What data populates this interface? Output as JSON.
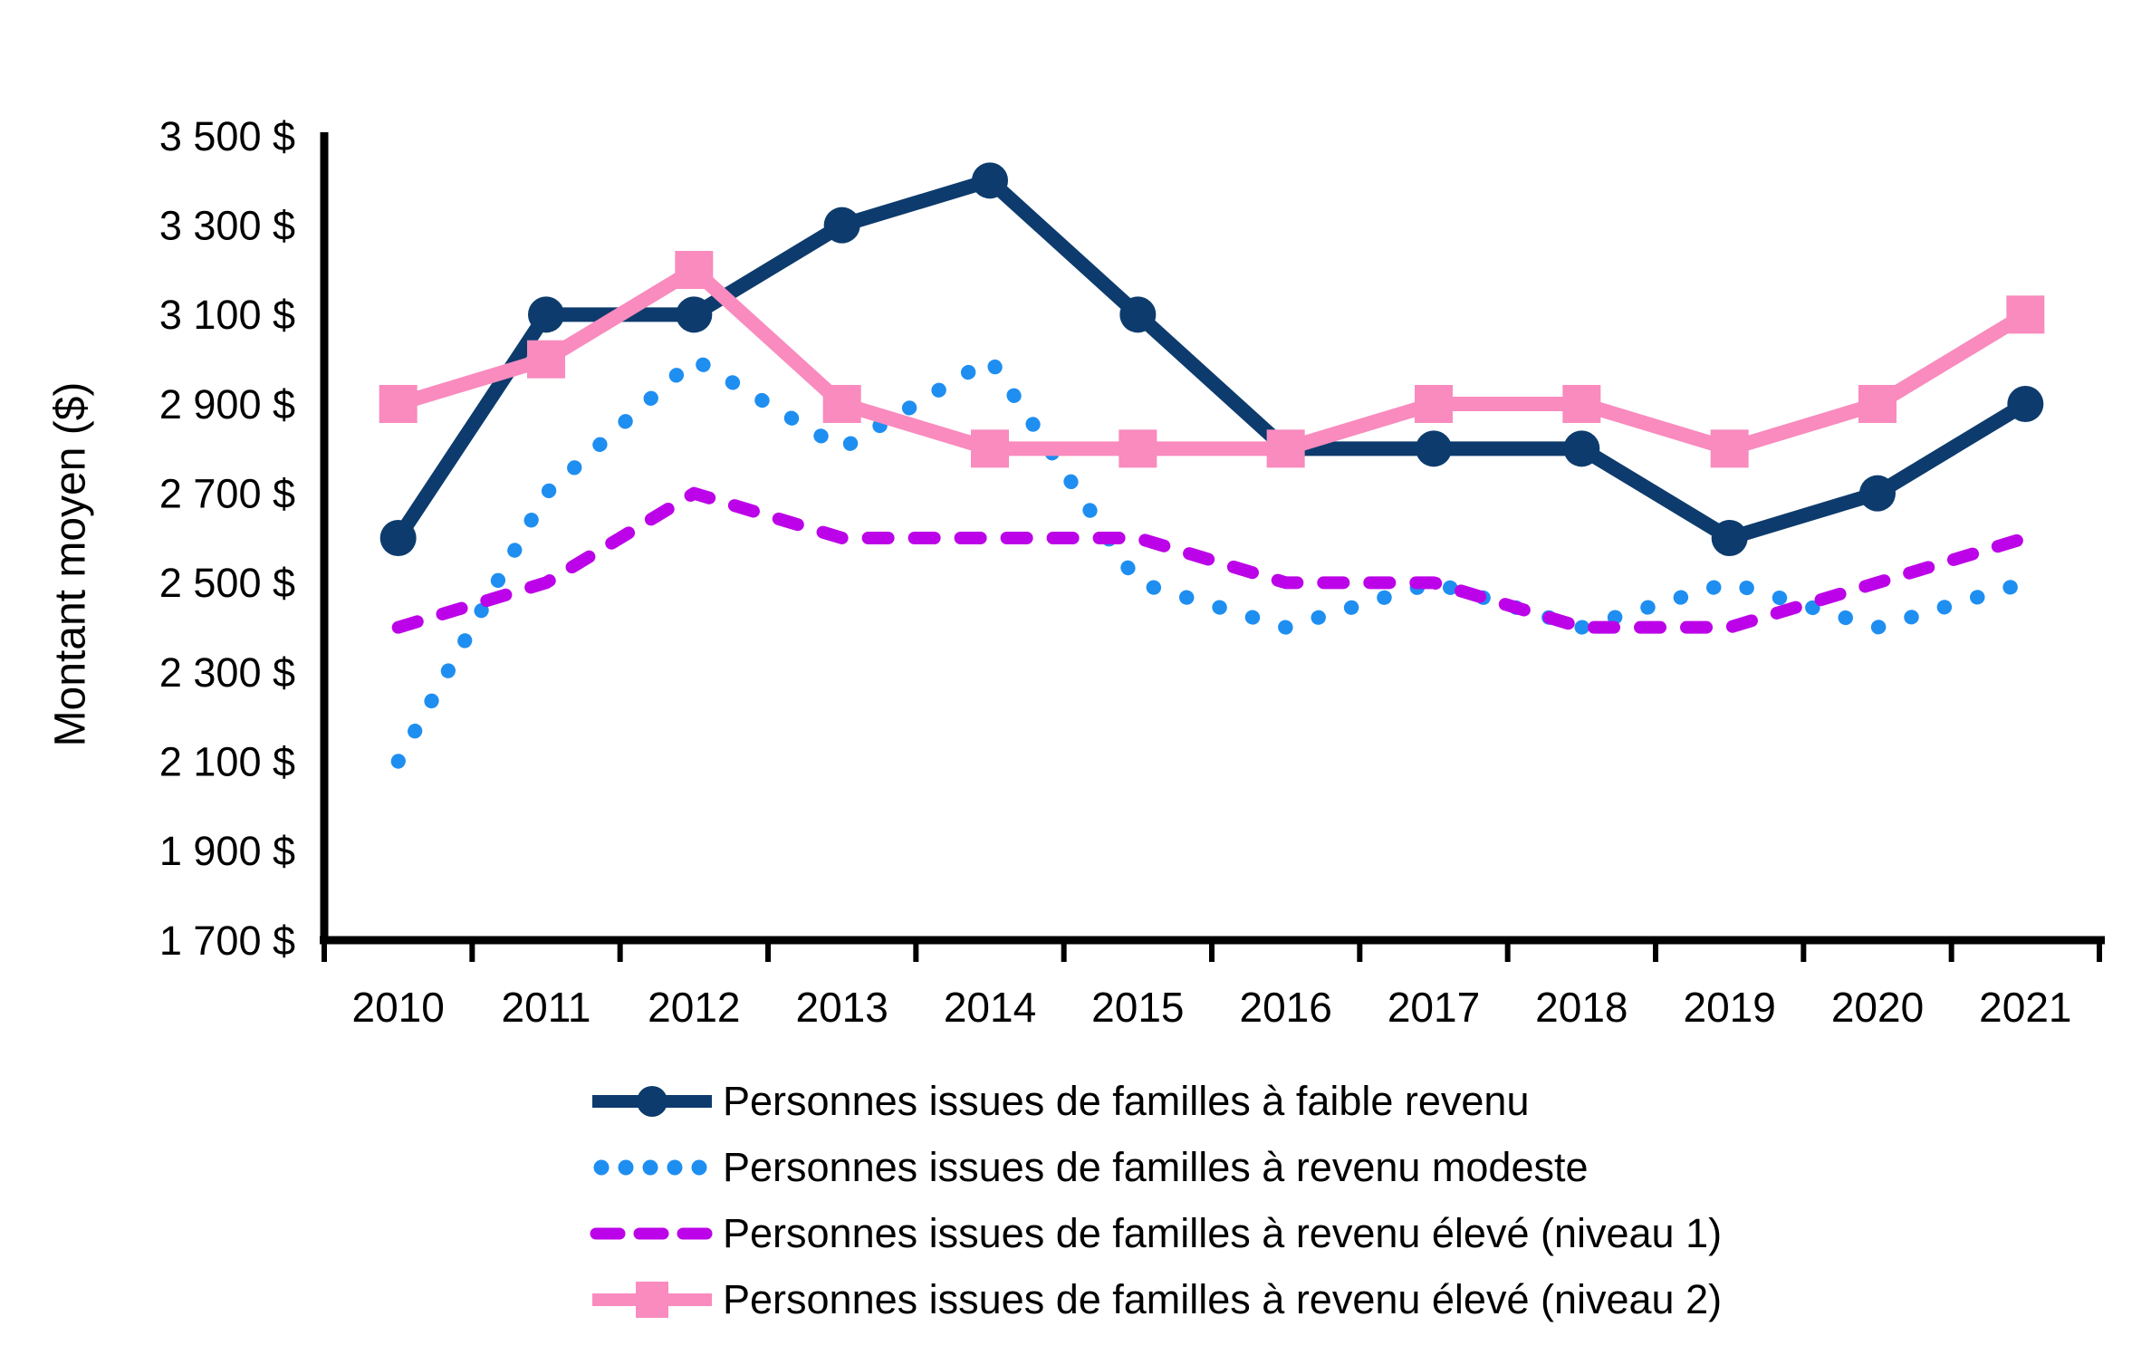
{
  "axis": {
    "y_ticks": [
      {
        "value": 3500,
        "label": "3 500 $"
      },
      {
        "value": 3300,
        "label": "3 300 $"
      },
      {
        "value": 3100,
        "label": "3 100 $"
      },
      {
        "value": 2900,
        "label": "2 900 $"
      },
      {
        "value": 2700,
        "label": "2 700 $"
      },
      {
        "value": 2500,
        "label": "2 500 $"
      },
      {
        "value": 2300,
        "label": "2 300 $"
      },
      {
        "value": 2100,
        "label": "2 100 $"
      },
      {
        "value": 1900,
        "label": "1 900 $"
      },
      {
        "value": 1700,
        "label": "1 700 $"
      }
    ],
    "x_labels": [
      "2010",
      "2011",
      "2012",
      "2013",
      "2014",
      "2015",
      "2016",
      "2017",
      "2018",
      "2019",
      "2020",
      "2021"
    ]
  },
  "chart_data": {
    "type": "line",
    "title": "",
    "xlabel": "",
    "ylabel": "Montant moyen ($)",
    "ylim": [
      1700,
      3500
    ],
    "y_tick_step": 200,
    "grid": false,
    "legend_position": "bottom",
    "categories": [
      2010,
      2011,
      2012,
      2013,
      2014,
      2015,
      2016,
      2017,
      2018,
      2019,
      2020,
      2021
    ],
    "series": [
      {
        "name": "Personnes issues de familles à faible revenu",
        "color": "#0d3b6d",
        "style": "solid",
        "marker": "circle",
        "values": [
          2600,
          3100,
          3100,
          3300,
          3400,
          3100,
          2800,
          2800,
          2800,
          2600,
          2700,
          2900
        ]
      },
      {
        "name": "Personnes issues de familles à revenu modeste",
        "color": "#1f8ef1",
        "style": "dotted",
        "marker": "none",
        "values": [
          2100,
          2700,
          3000,
          2800,
          3000,
          2500,
          2400,
          2500,
          2400,
          2500,
          2400,
          2500
        ]
      },
      {
        "name": "Personnes issues de familles à revenu élevé (niveau 1)",
        "color": "#bc02e8",
        "style": "dashed",
        "marker": "none",
        "values": [
          2400,
          2500,
          2700,
          2600,
          2600,
          2600,
          2500,
          2500,
          2400,
          2400,
          2500,
          2600
        ]
      },
      {
        "name": "Personnes issues de familles à revenu élevé (niveau 2)",
        "color": "#f98bbe",
        "style": "solid",
        "marker": "square",
        "values": [
          2900,
          3000,
          3200,
          2900,
          2800,
          2800,
          2800,
          2900,
          2900,
          2800,
          2900,
          3100
        ]
      }
    ],
    "axis_color": "#000000",
    "tick_label_color": "#000000"
  }
}
